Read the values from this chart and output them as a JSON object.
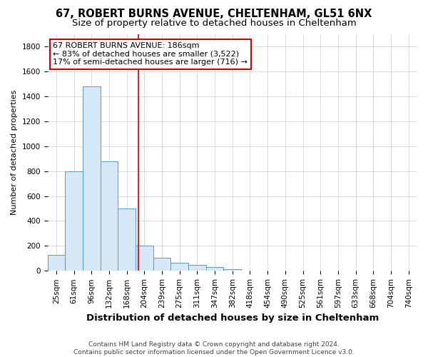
{
  "title_line1": "67, ROBERT BURNS AVENUE, CHELTENHAM, GL51 6NX",
  "title_line2": "Size of property relative to detached houses in Cheltenham",
  "xlabel": "Distribution of detached houses by size in Cheltenham",
  "ylabel": "Number of detached properties",
  "footnote": "Contains HM Land Registry data © Crown copyright and database right 2024.\nContains public sector information licensed under the Open Government Licence v3.0.",
  "categories": [
    "25sqm",
    "61sqm",
    "96sqm",
    "132sqm",
    "168sqm",
    "204sqm",
    "239sqm",
    "275sqm",
    "311sqm",
    "347sqm",
    "382sqm",
    "418sqm",
    "454sqm",
    "490sqm",
    "525sqm",
    "561sqm",
    "597sqm",
    "633sqm",
    "668sqm",
    "704sqm",
    "740sqm"
  ],
  "values": [
    130,
    800,
    1480,
    880,
    500,
    205,
    105,
    65,
    45,
    30,
    15,
    0,
    0,
    0,
    0,
    0,
    0,
    0,
    0,
    0,
    0
  ],
  "bar_color": "#d6e8f7",
  "bar_edge_color": "#5599cc",
  "vline_x": 4.65,
  "vline_color": "#cc0000",
  "annotation_text": "67 ROBERT BURNS AVENUE: 186sqm\n← 83% of detached houses are smaller (3,522)\n17% of semi-detached houses are larger (716) →",
  "annotation_box_color": "#cc0000",
  "ylim": [
    0,
    1900
  ],
  "yticks": [
    0,
    200,
    400,
    600,
    800,
    1000,
    1200,
    1400,
    1600,
    1800
  ],
  "grid_color": "#cccccc",
  "bg_color": "#ffffff",
  "title_fontsize": 10.5,
  "subtitle_fontsize": 9.5,
  "ylabel_fontsize": 8,
  "xlabel_fontsize": 9.5,
  "tick_fontsize": 7.5,
  "ann_fontsize": 8
}
